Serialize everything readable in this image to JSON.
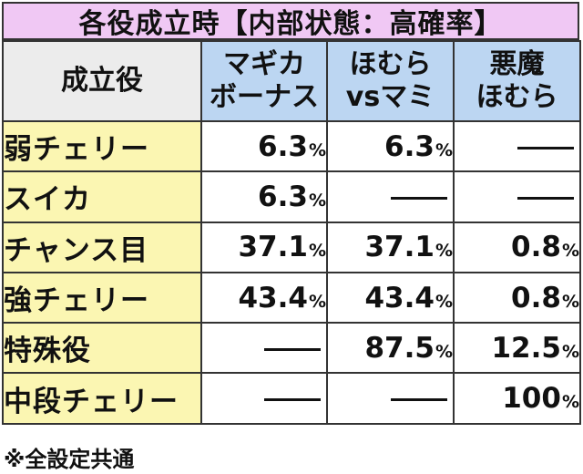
{
  "title": "各役成立時【内部状態：高確率】",
  "header": {
    "corner": "成立役",
    "columns": [
      {
        "line1": "マギカ",
        "line2": "ボーナス"
      },
      {
        "line1": "ほむら",
        "line2": "vsマミ"
      },
      {
        "line1": "悪魔",
        "line2": "ほむら"
      }
    ]
  },
  "rows": [
    {
      "label": "弱チェリー",
      "values": [
        {
          "num": "6.3",
          "unit": "%"
        },
        {
          "num": "6.3",
          "unit": "%"
        },
        {
          "dash": true
        }
      ]
    },
    {
      "label": "スイカ",
      "values": [
        {
          "num": "6.3",
          "unit": "%"
        },
        {
          "dash": true
        },
        {
          "dash": true
        }
      ]
    },
    {
      "label": "チャンス目",
      "values": [
        {
          "num": "37.1",
          "unit": "%"
        },
        {
          "num": "37.1",
          "unit": "%"
        },
        {
          "num": "0.8",
          "unit": "%"
        }
      ]
    },
    {
      "label": "強チェリー",
      "values": [
        {
          "num": "43.4",
          "unit": "%"
        },
        {
          "num": "43.4",
          "unit": "%"
        },
        {
          "num": "0.8",
          "unit": "%"
        }
      ]
    },
    {
      "label": "特殊役",
      "values": [
        {
          "dash": true
        },
        {
          "num": "87.5",
          "unit": "%"
        },
        {
          "num": "12.5",
          "unit": "%"
        }
      ]
    },
    {
      "label": "中段チェリー",
      "values": [
        {
          "dash": true
        },
        {
          "dash": true
        },
        {
          "num": "100",
          "unit": "%"
        }
      ]
    }
  ],
  "footnote": "※全設定共通"
}
